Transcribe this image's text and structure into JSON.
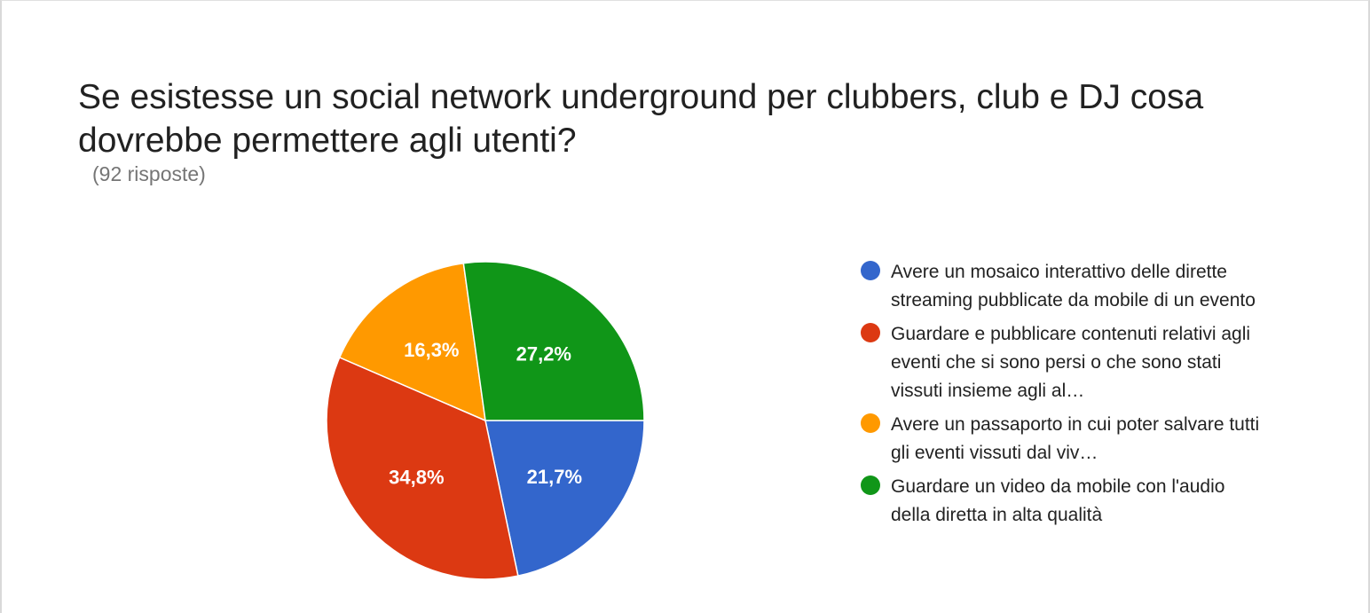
{
  "chart_data": {
    "type": "pie",
    "title": "Se esistesse un social network underground per clubbers, club e DJ cosa dovrebbe permettere agli utenti?",
    "subtitle": "(92 risposte)",
    "legend_position": "right",
    "slices": [
      {
        "label": "Avere un mosaico interattivo delle dirette streaming pubblicate da mobile di un evento",
        "value": 21.7,
        "display": "21,7%",
        "color": "#3366cc"
      },
      {
        "label": "Guardare e pubblicare contenuti relativi agli eventi che si sono persi o che sono stati vissuti insieme agli al…",
        "value": 34.8,
        "display": "34,8%",
        "color": "#dc3912"
      },
      {
        "label": "Avere un passaporto in cui poter salvare tutti gli eventi vissuti dal viv…",
        "value": 16.3,
        "display": "16,3%",
        "color": "#ff9900"
      },
      {
        "label": "Guardare un video da mobile con l'audio della diretta in alta qualità",
        "value": 27.2,
        "display": "27,2%",
        "color": "#109618"
      }
    ]
  }
}
